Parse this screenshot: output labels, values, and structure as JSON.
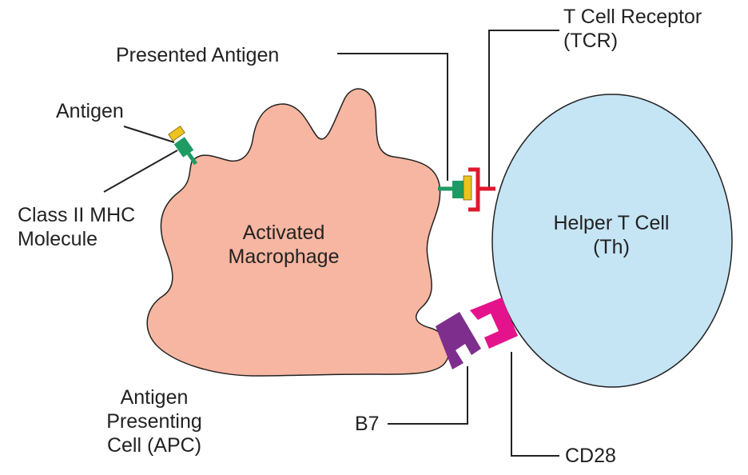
{
  "labels": {
    "tcr": [
      "T Cell Receptor",
      "(TCR)"
    ],
    "presented_antigen": "Presented Antigen",
    "antigen": "Antigen",
    "class2_mhc": [
      "Class II MHC",
      "Molecule"
    ],
    "macrophage": [
      "Activated",
      "Macrophage"
    ],
    "helper_t": [
      "Helper T Cell",
      "(Th)"
    ],
    "apc": [
      "Antigen",
      "Presenting",
      "Cell (APC)"
    ],
    "b7": "B7",
    "cd28": "CD28"
  },
  "colors": {
    "macrophage": "#f7b6a1",
    "helper_t": "#c5e4f4",
    "mhc": "#1e9a63",
    "antigen": "#ecc21f",
    "tcr": "#e0182c",
    "b7": "#7e2e8c",
    "cd28": "#e4138c",
    "leader": "#222222"
  }
}
